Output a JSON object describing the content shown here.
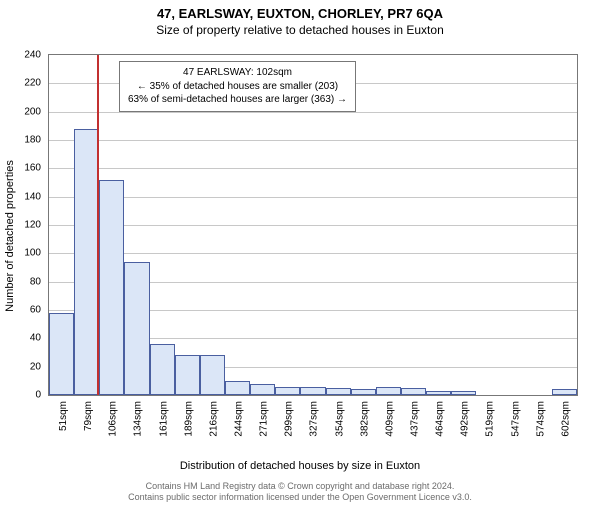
{
  "title": "47, EARLSWAY, EUXTON, CHORLEY, PR7 6QA",
  "subtitle": "Size of property relative to detached houses in Euxton",
  "ylabel": "Number of detached properties",
  "xlabel": "Distribution of detached houses by size in Euxton",
  "footer_line1": "Contains HM Land Registry data © Crown copyright and database right 2024.",
  "footer_line2": "Contains public sector information licensed under the Open Government Licence v3.0.",
  "annotation": {
    "line1": "47 EARLSWAY: 102sqm",
    "line2": "← 35% of detached houses are smaller (203)",
    "line3": "63% of semi-detached houses are larger (363) →"
  },
  "chart": {
    "type": "histogram",
    "ylim": [
      0,
      240
    ],
    "ytick_step": 20,
    "xticks": [
      "51sqm",
      "79sqm",
      "106sqm",
      "134sqm",
      "161sqm",
      "189sqm",
      "216sqm",
      "244sqm",
      "271sqm",
      "299sqm",
      "327sqm",
      "354sqm",
      "382sqm",
      "409sqm",
      "437sqm",
      "464sqm",
      "492sqm",
      "519sqm",
      "547sqm",
      "574sqm",
      "602sqm"
    ],
    "values": [
      58,
      188,
      152,
      94,
      36,
      28,
      28,
      10,
      8,
      6,
      6,
      5,
      4,
      6,
      5,
      3,
      3,
      0,
      0,
      0,
      4
    ],
    "bar_fill": "#dbe6f7",
    "bar_border": "#4a5fa0",
    "background": "#ffffff",
    "grid_color": "#c8c8c8",
    "axis_color": "#777777",
    "marker": {
      "x_index_between": 1.9,
      "color": "#c23030"
    },
    "label_fontsize": 11,
    "tick_fontsize": 10,
    "title_fontsize": 13
  }
}
